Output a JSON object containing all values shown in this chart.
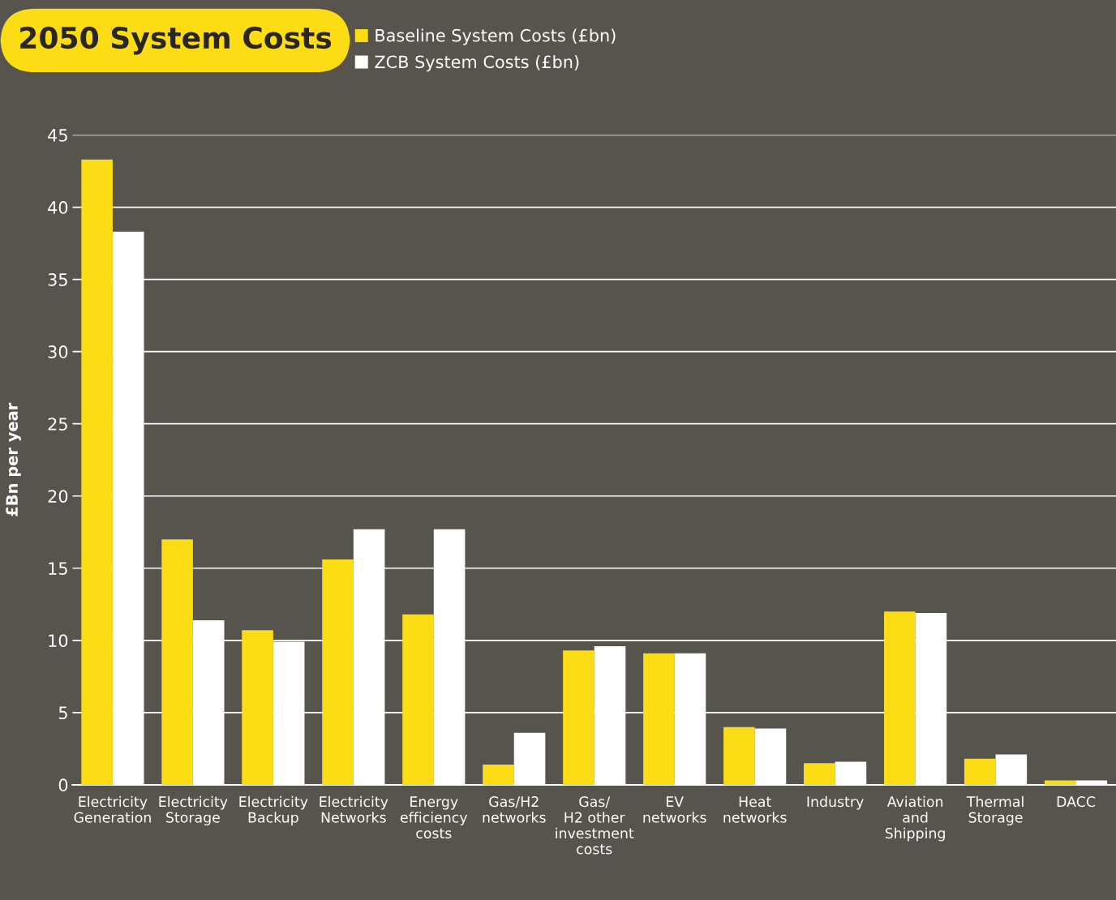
{
  "chart_data": {
    "type": "bar",
    "title": "2050 System Costs",
    "ylabel": "£Bn per year",
    "categories": [
      "Electricity\nGeneration",
      "Electricity\nStorage",
      "Electricity\nBackup",
      "Electricity\nNetworks",
      "Energy\nefficiency\ncosts",
      "Gas/H2\nnetworks",
      "Gas/\nH2 other\ninvestment\ncosts",
      "EV\nnetworks",
      "Heat\nnetworks",
      "Industry",
      "Aviation\nand\nShipping",
      "Thermal\nStorage",
      "DACC"
    ],
    "series": [
      {
        "name": "Baseline System Costs (£bn)",
        "color": "#fcdc14",
        "values": [
          43.3,
          17.0,
          10.7,
          15.6,
          11.8,
          1.4,
          9.3,
          9.1,
          4.0,
          1.5,
          12.0,
          1.8,
          0.3
        ]
      },
      {
        "name": "ZCB System Costs (£bn)",
        "color": "#ffffff",
        "values": [
          38.3,
          11.4,
          9.9,
          17.7,
          17.7,
          3.6,
          9.6,
          9.1,
          3.9,
          1.6,
          11.9,
          2.1,
          0.3
        ]
      }
    ],
    "ylim": [
      0,
      45
    ],
    "yticks": [
      0,
      5,
      10,
      15,
      20,
      25,
      30,
      35,
      40,
      45
    ],
    "grid": "y",
    "legend": "top"
  }
}
